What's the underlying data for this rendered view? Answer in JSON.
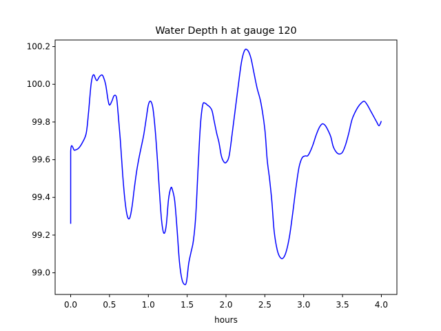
{
  "chart_data": {
    "type": "line",
    "title": "Water Depth h at gauge 120",
    "xlabel": "hours",
    "ylabel": "",
    "xlim": [
      -0.2,
      4.2
    ],
    "ylim": [
      98.885,
      100.235
    ],
    "xticks": [
      0.0,
      0.5,
      1.0,
      1.5,
      2.0,
      2.5,
      3.0,
      3.5,
      4.0
    ],
    "xtick_labels": [
      "0.0",
      "0.5",
      "1.0",
      "1.5",
      "2.0",
      "2.5",
      "3.0",
      "3.5",
      "4.0"
    ],
    "yticks": [
      99.0,
      99.2,
      99.4,
      99.6,
      99.8,
      100.0,
      100.2
    ],
    "ytick_labels": [
      "99.0",
      "99.2",
      "99.4",
      "99.6",
      "99.8",
      "100.0",
      "100.2"
    ],
    "grid": false,
    "legend": "none",
    "series": [
      {
        "color": "#0000ff",
        "x": [
          0.0,
          0.0,
          0.05,
          0.1,
          0.15,
          0.2,
          0.23,
          0.26,
          0.28,
          0.3,
          0.32,
          0.34,
          0.37,
          0.4,
          0.42,
          0.45,
          0.48,
          0.5,
          0.53,
          0.56,
          0.59,
          0.61,
          0.64,
          0.67,
          0.7,
          0.73,
          0.76,
          0.79,
          0.82,
          0.85,
          0.88,
          0.91,
          0.94,
          0.97,
          1.0,
          1.03,
          1.06,
          1.09,
          1.12,
          1.14,
          1.17,
          1.2,
          1.23,
          1.26,
          1.29,
          1.31,
          1.34,
          1.37,
          1.4,
          1.43,
          1.46,
          1.49,
          1.52,
          1.55,
          1.58,
          1.61,
          1.64,
          1.67,
          1.7,
          1.73,
          1.76,
          1.79,
          1.82,
          1.85,
          1.88,
          1.91,
          1.94,
          1.97,
          2.0,
          2.04,
          2.08,
          2.12,
          2.16,
          2.2,
          2.24,
          2.28,
          2.32,
          2.36,
          2.4,
          2.45,
          2.5,
          2.53,
          2.56,
          2.59,
          2.62,
          2.66,
          2.7,
          2.74,
          2.78,
          2.82,
          2.86,
          2.9,
          2.94,
          2.98,
          3.02,
          3.05,
          3.08,
          3.12,
          3.16,
          3.2,
          3.24,
          3.28,
          3.32,
          3.35,
          3.38,
          3.42,
          3.46,
          3.5,
          3.54,
          3.58,
          3.62,
          3.66,
          3.7,
          3.74,
          3.78,
          3.82,
          3.86,
          3.9,
          3.94,
          3.97,
          4.0
        ],
        "y": [
          99.26,
          99.645,
          99.65,
          99.66,
          99.69,
          99.74,
          99.85,
          99.99,
          100.04,
          100.05,
          100.03,
          100.02,
          100.04,
          100.05,
          100.04,
          100.0,
          99.92,
          99.89,
          99.91,
          99.94,
          99.93,
          99.85,
          99.7,
          99.52,
          99.38,
          99.3,
          99.29,
          99.35,
          99.45,
          99.54,
          99.61,
          99.67,
          99.73,
          99.81,
          99.89,
          99.91,
          99.87,
          99.75,
          99.58,
          99.45,
          99.28,
          99.21,
          99.25,
          99.39,
          99.45,
          99.44,
          99.38,
          99.23,
          99.06,
          98.97,
          98.94,
          98.95,
          99.05,
          99.11,
          99.17,
          99.3,
          99.55,
          99.78,
          99.89,
          99.9,
          99.89,
          99.88,
          99.86,
          99.8,
          99.74,
          99.69,
          99.62,
          99.59,
          99.585,
          99.62,
          99.74,
          99.87,
          100.0,
          100.12,
          100.18,
          100.18,
          100.14,
          100.06,
          99.98,
          99.9,
          99.76,
          99.6,
          99.5,
          99.38,
          99.22,
          99.12,
          99.08,
          99.08,
          99.12,
          99.2,
          99.32,
          99.45,
          99.56,
          99.61,
          99.62,
          99.62,
          99.64,
          99.68,
          99.73,
          99.77,
          99.79,
          99.78,
          99.75,
          99.72,
          99.67,
          99.64,
          99.63,
          99.64,
          99.68,
          99.74,
          99.81,
          99.85,
          99.88,
          99.9,
          99.91,
          99.89,
          99.86,
          99.83,
          99.8,
          99.78,
          99.805
        ]
      }
    ]
  }
}
